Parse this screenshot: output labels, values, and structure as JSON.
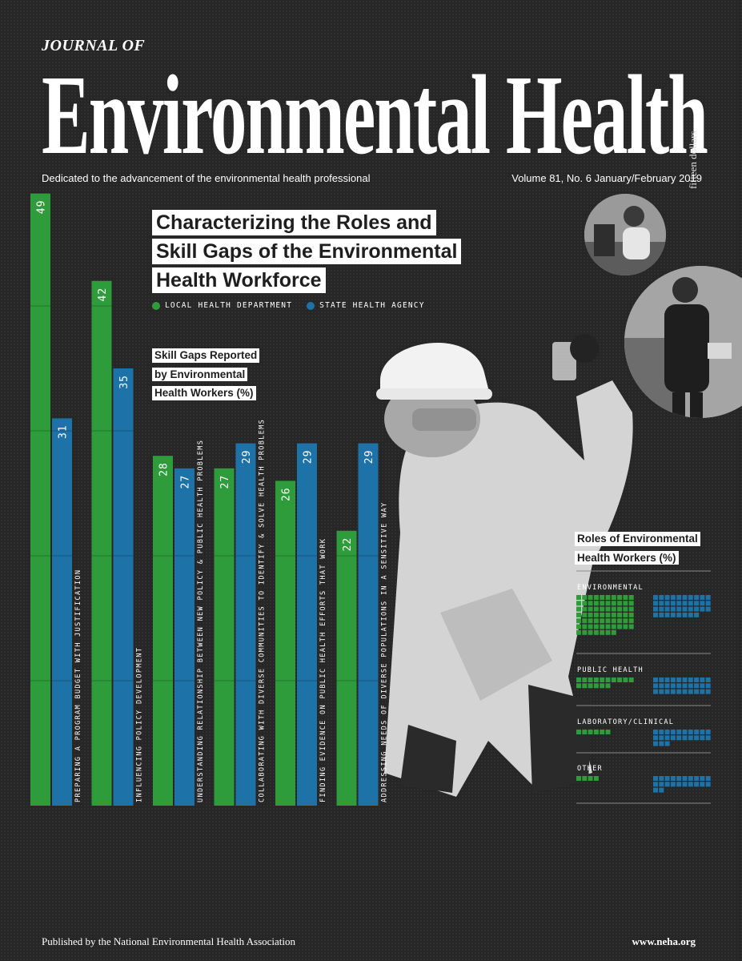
{
  "header": {
    "journal_of": "JOURNAL OF",
    "masthead": "Environmental Health",
    "price": "fifteen dollars",
    "tagline": "Dedicated to the advancement of the environmental health professional",
    "issue": "Volume 81, No. 6 January/February 2019"
  },
  "headline": {
    "line1": "Characterizing the Roles and",
    "line2": "Skill Gaps of the Environmental",
    "line3": "Health Workforce"
  },
  "colors": {
    "local": "#2f9c3c",
    "state": "#1d73a8",
    "background": "#262626"
  },
  "chart_data": [
    {
      "type": "bar",
      "title": "Skill Gaps Reported by Environmental Health Workers (%)",
      "title_lines": [
        "Skill Gaps Reported",
        "by Environmental",
        "Health Workers (%)"
      ],
      "categories": [
        "PREPARING A PROGRAM BUDGET WITH JUSTIFICATION",
        "INFLUENCING POLICY DEVELOPMENT",
        "UNDERSTANDING RELATIONSHIP BETWEEN NEW POLICY & PUBLIC HEALTH PROBLEMS",
        "COLLABORATING WITH DIVERSE COMMUNITIES TO IDENTIFY & SOLVE HEALTH PROBLEMS",
        "FINDING EVIDENCE ON PUBLIC HEALTH EFFORTS THAT WORK",
        "ADDRESSING NEEDS OF DIVERSE POPULATIONS IN A SENSITIVE WAY"
      ],
      "series": [
        {
          "name": "LOCAL HEALTH DEPARTMENT",
          "color": "#2f9c3c",
          "values": [
            49,
            42,
            28,
            27,
            26,
            22
          ]
        },
        {
          "name": "STATE HEALTH AGENCY",
          "color": "#1d73a8",
          "values": [
            31,
            35,
            27,
            29,
            29,
            29
          ]
        }
      ],
      "ylim": [
        0,
        50
      ],
      "legend": "top"
    },
    {
      "type": "bar",
      "title": "Roles of Environmental Health Workers (%)",
      "title_lines": [
        "Roles of Environmental",
        "Health Workers (%)"
      ],
      "categories": [
        "ENVIRONMENTAL",
        "PUBLIC HEALTH",
        "LABORATORY/CLINICAL",
        "OTHER"
      ],
      "series": [
        {
          "name": "LOCAL HEALTH DEPARTMENT",
          "values": [
            67,
            16,
            6,
            4
          ]
        },
        {
          "name": "STATE HEALTH AGENCY",
          "values": [
            38,
            30,
            23,
            22
          ]
        }
      ]
    }
  ],
  "footer": {
    "publisher": "Published by the National Environmental Health Association",
    "website": "www.neha.org"
  }
}
